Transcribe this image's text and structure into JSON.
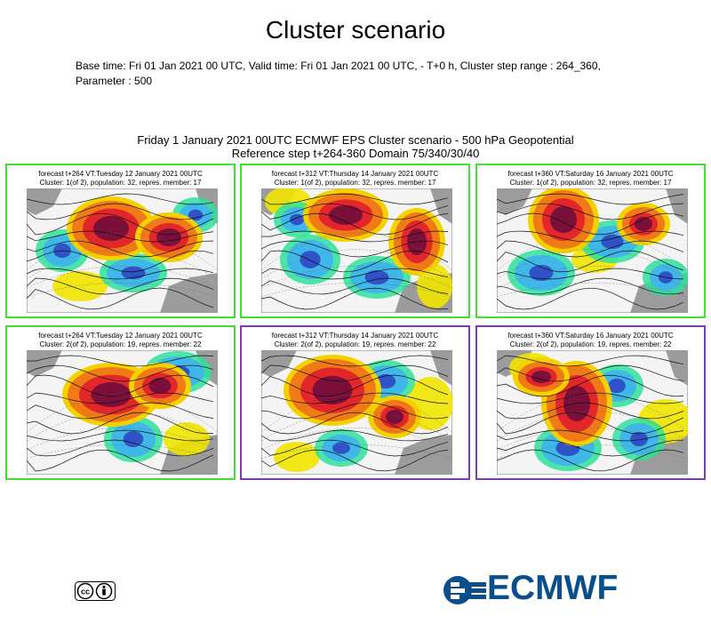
{
  "header": {
    "title": "Cluster scenario",
    "subtitle": "Base time: Fri 01 Jan 2021 00 UTC, Valid time: Fri 01 Jan 2021 00 UTC, - T+0 h, Cluster step range : 264_360, Parameter : 500"
  },
  "chart_data": {
    "type": "other",
    "title_line1": "Friday 1 January 2021 00UTC ECMWF EPS Cluster scenario - 500 hPa Geopotential",
    "title_line2": "Reference step t+264-360 Domain 75/340/30/40",
    "panels": [
      {
        "forecast": "forecast t+264 VT:Tuesday 12 January 2021 00UTC",
        "cluster": "Cluster: 1(of 2), population: 32, repres. member: 17",
        "border": "#44dd33"
      },
      {
        "forecast": "forecast t+312 VT:Thursday 14 January 2021 00UTC",
        "cluster": "Cluster: 1(of 2), population: 32, repres. member: 17",
        "border": "#44dd33"
      },
      {
        "forecast": "forecast t+360 VT:Saturday 16 January 2021 00UTC",
        "cluster": "Cluster: 1(of 2), population: 32, repres. member: 17",
        "border": "#44dd33"
      },
      {
        "forecast": "forecast t+264 VT:Tuesday 12 January 2021 00UTC",
        "cluster": "Cluster: 2(of 2), population: 19, repres. member: 22",
        "border": "#44dd33"
      },
      {
        "forecast": "forecast t+312 VT:Thursday 14 January 2021 00UTC",
        "cluster": "Cluster: 2(of 2), population: 19, repres. member: 22",
        "border": "#7a3fa8"
      },
      {
        "forecast": "forecast t+360 VT:Saturday 16 January 2021 00UTC",
        "cluster": "Cluster: 2(of 2), population: 19, repres. member: 22",
        "border": "#7a3fa8"
      }
    ]
  },
  "footer": {
    "brand": "ECMWF",
    "brand_color": "#0a4f8c",
    "license_icon": "creative-commons-by-icon"
  }
}
